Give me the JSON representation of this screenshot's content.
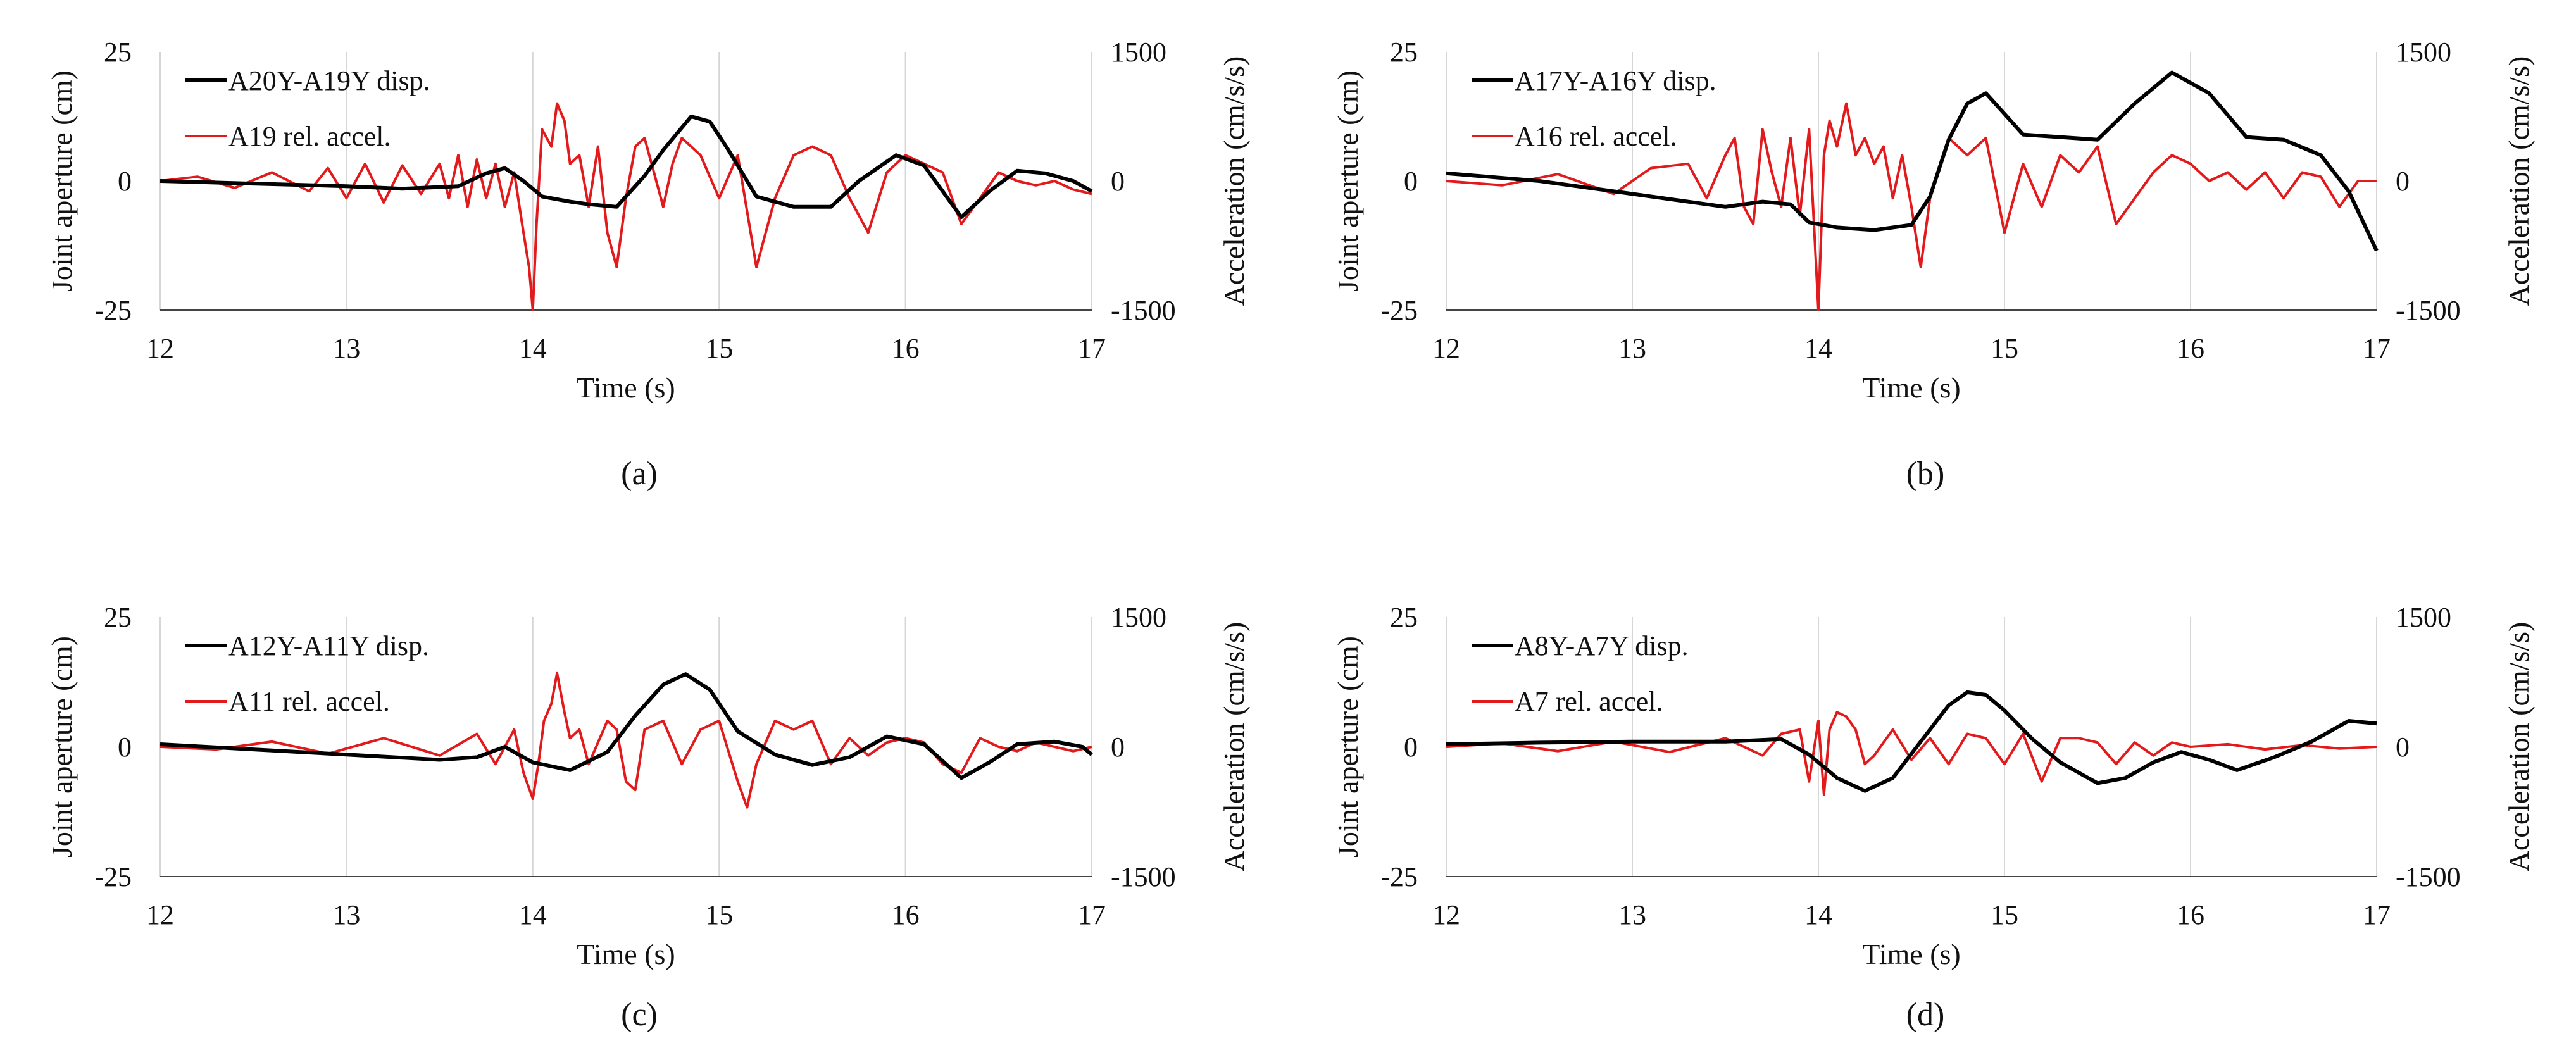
{
  "colors": {
    "disp": "#000000",
    "accel": "#e31a1c",
    "grid": "#d6d6d6"
  },
  "chart_data": [
    {
      "type": "line",
      "panel": "(a)",
      "xlabel": "Time (s)",
      "ylabel": "Joint aperture (cm)",
      "y2label": "Acceleration (cm/s/s)",
      "xlim": [
        12,
        17
      ],
      "xticks": [
        12,
        13,
        14,
        15,
        16,
        17
      ],
      "ylim": [
        -25,
        25
      ],
      "yticks": [
        -25,
        0,
        25
      ],
      "y2lim": [
        -1500,
        1500
      ],
      "y2ticks": [
        -1500,
        0,
        1500
      ],
      "grid": true,
      "legend_position": "top-left",
      "series": [
        {
          "name": "A20Y-A19Y disp.",
          "axis": "left",
          "role": "disp",
          "x": [
            12,
            12.5,
            13,
            13.3,
            13.6,
            13.75,
            13.85,
            13.95,
            14.05,
            14.2,
            14.3,
            14.45,
            14.6,
            14.7,
            14.85,
            14.95,
            15.05,
            15.2,
            15.4,
            15.6,
            15.75,
            15.95,
            16.1,
            16.3,
            16.45,
            16.6,
            16.75,
            16.9,
            17
          ],
          "y": [
            0,
            -0.5,
            -1,
            -1.5,
            -1,
            1.5,
            2.5,
            0,
            -3,
            -4,
            -4.5,
            -5,
            1,
            6,
            12.5,
            11.5,
            6,
            -3,
            -5,
            -5,
            0,
            5,
            3,
            -7,
            -2,
            2,
            1.5,
            0,
            -2
          ]
        },
        {
          "name": "A19 rel. accel.",
          "axis": "right",
          "role": "accel",
          "x": [
            12,
            12.2,
            12.4,
            12.6,
            12.8,
            12.9,
            13,
            13.1,
            13.2,
            13.3,
            13.4,
            13.5,
            13.55,
            13.6,
            13.65,
            13.7,
            13.75,
            13.8,
            13.85,
            13.9,
            13.95,
            13.98,
            14,
            14.02,
            14.05,
            14.1,
            14.13,
            14.17,
            14.2,
            14.25,
            14.3,
            14.35,
            14.4,
            14.45,
            14.5,
            14.55,
            14.6,
            14.65,
            14.7,
            14.75,
            14.8,
            14.9,
            15,
            15.1,
            15.2,
            15.3,
            15.4,
            15.5,
            15.6,
            15.7,
            15.8,
            15.9,
            16,
            16.1,
            16.2,
            16.3,
            16.4,
            16.5,
            16.6,
            16.7,
            16.8,
            16.9,
            17
          ],
          "y": [
            0,
            50,
            -80,
            100,
            -120,
            150,
            -200,
            200,
            -250,
            180,
            -150,
            200,
            -200,
            300,
            -300,
            250,
            -200,
            200,
            -300,
            100,
            -600,
            -1000,
            -1500,
            -500,
            600,
            400,
            900,
            700,
            200,
            300,
            -300,
            400,
            -600,
            -1000,
            -200,
            400,
            500,
            100,
            -300,
            200,
            500,
            300,
            -200,
            300,
            -1000,
            -200,
            300,
            400,
            300,
            -200,
            -600,
            100,
            300,
            200,
            100,
            -500,
            -200,
            100,
            0,
            -50,
            0,
            -100,
            -150
          ]
        }
      ]
    },
    {
      "type": "line",
      "panel": "(b)",
      "xlabel": "Time (s)",
      "ylabel": "Joint aperture (cm)",
      "y2label": "Acceleration (cm/s/s)",
      "xlim": [
        12,
        17
      ],
      "xticks": [
        12,
        13,
        14,
        15,
        16,
        17
      ],
      "ylim": [
        -25,
        25
      ],
      "yticks": [
        -25,
        0,
        25
      ],
      "y2lim": [
        -1500,
        1500
      ],
      "y2ticks": [
        -1500,
        0,
        1500
      ],
      "grid": true,
      "legend_position": "top-left",
      "series": [
        {
          "name": "A17Y-A16Y disp.",
          "axis": "left",
          "role": "disp",
          "x": [
            12,
            12.5,
            13,
            13.5,
            13.7,
            13.85,
            13.95,
            14.1,
            14.3,
            14.5,
            14.6,
            14.7,
            14.8,
            14.9,
            15,
            15.1,
            15.3,
            15.5,
            15.7,
            15.9,
            16.1,
            16.3,
            16.5,
            16.7,
            16.85,
            17
          ],
          "y": [
            1.5,
            0,
            -2.5,
            -5,
            -4,
            -4.5,
            -8,
            -9,
            -9.5,
            -8.5,
            -3,
            8,
            15,
            17,
            13,
            9,
            8.5,
            8,
            15,
            21,
            17,
            8.5,
            8,
            5,
            -2,
            -13.5
          ]
        },
        {
          "name": "A16 rel. accel.",
          "axis": "right",
          "role": "accel",
          "x": [
            12,
            12.3,
            12.6,
            12.9,
            13.1,
            13.3,
            13.4,
            13.5,
            13.55,
            13.6,
            13.65,
            13.7,
            13.75,
            13.8,
            13.85,
            13.9,
            13.95,
            14,
            14.03,
            14.06,
            14.1,
            14.15,
            14.2,
            14.25,
            14.3,
            14.35,
            14.4,
            14.45,
            14.5,
            14.55,
            14.6,
            14.7,
            14.8,
            14.9,
            15,
            15.1,
            15.2,
            15.3,
            15.4,
            15.5,
            15.6,
            15.7,
            15.8,
            15.9,
            16,
            16.1,
            16.2,
            16.3,
            16.4,
            16.5,
            16.6,
            16.7,
            16.8,
            16.9,
            17
          ],
          "y": [
            0,
            -50,
            80,
            -150,
            150,
            200,
            -200,
            300,
            500,
            -300,
            -500,
            600,
            100,
            -300,
            500,
            -400,
            600,
            -1500,
            300,
            700,
            400,
            900,
            300,
            500,
            200,
            400,
            -200,
            300,
            -300,
            -1000,
            -200,
            500,
            300,
            500,
            -600,
            200,
            -300,
            300,
            100,
            400,
            -500,
            -200,
            100,
            300,
            200,
            0,
            100,
            -100,
            100,
            -200,
            100,
            50,
            -300,
            0,
            0
          ]
        }
      ]
    },
    {
      "type": "line",
      "panel": "(c)",
      "xlabel": "Time (s)",
      "ylabel": "Joint aperture (cm)",
      "y2label": "Acceleration (cm/s/s)",
      "xlim": [
        12,
        17
      ],
      "xticks": [
        12,
        13,
        14,
        15,
        16,
        17
      ],
      "ylim": [
        -25,
        25
      ],
      "yticks": [
        -25,
        0,
        25
      ],
      "y2lim": [
        -1500,
        1500
      ],
      "y2ticks": [
        -1500,
        0,
        1500
      ],
      "grid": true,
      "legend_position": "top-left",
      "series": [
        {
          "name": "A12Y-A11Y disp.",
          "axis": "left",
          "role": "disp",
          "x": [
            12,
            12.5,
            13,
            13.5,
            13.7,
            13.85,
            14,
            14.2,
            14.4,
            14.55,
            14.7,
            14.82,
            14.95,
            15.1,
            15.3,
            15.5,
            15.7,
            15.9,
            16.1,
            16.3,
            16.45,
            16.6,
            16.8,
            16.95,
            17
          ],
          "y": [
            0.5,
            -0.5,
            -1.5,
            -2.5,
            -2,
            0,
            -3,
            -4.5,
            -1,
            6,
            12,
            14,
            11,
            3,
            -1.5,
            -3.5,
            -2,
            2,
            0.5,
            -6,
            -3,
            0.5,
            1,
            0,
            -1.5
          ]
        },
        {
          "name": "A11 rel. accel.",
          "axis": "right",
          "role": "accel",
          "x": [
            12,
            12.3,
            12.6,
            12.9,
            13.2,
            13.5,
            13.7,
            13.8,
            13.9,
            13.95,
            14,
            14.03,
            14.06,
            14.1,
            14.13,
            14.17,
            14.2,
            14.25,
            14.3,
            14.4,
            14.45,
            14.5,
            14.55,
            14.6,
            14.7,
            14.8,
            14.9,
            15,
            15.1,
            15.15,
            15.2,
            15.3,
            15.4,
            15.5,
            15.6,
            15.7,
            15.8,
            15.9,
            16,
            16.1,
            16.2,
            16.3,
            16.4,
            16.5,
            16.6,
            16.7,
            16.8,
            16.9,
            17
          ],
          "y": [
            0,
            -30,
            60,
            -80,
            100,
            -100,
            150,
            -200,
            200,
            -300,
            -600,
            -200,
            300,
            500,
            850,
            400,
            100,
            200,
            -200,
            300,
            200,
            -400,
            -500,
            200,
            300,
            -200,
            200,
            300,
            -400,
            -700,
            -200,
            300,
            200,
            300,
            -200,
            100,
            -100,
            50,
            100,
            50,
            -200,
            -300,
            100,
            0,
            -50,
            50,
            0,
            -50,
            0
          ]
        }
      ]
    },
    {
      "type": "line",
      "panel": "(d)",
      "xlabel": "Time (s)",
      "ylabel": "Joint aperture (cm)",
      "y2label": "Acceleration (cm/s/s)",
      "xlim": [
        12,
        17
      ],
      "xticks": [
        12,
        13,
        14,
        15,
        16,
        17
      ],
      "ylim": [
        -25,
        25
      ],
      "yticks": [
        -25,
        0,
        25
      ],
      "y2lim": [
        -1500,
        1500
      ],
      "y2ticks": [
        -1500,
        0,
        1500
      ],
      "grid": true,
      "legend_position": "top-left",
      "series": [
        {
          "name": "A8Y-A7Y disp.",
          "axis": "left",
          "role": "disp",
          "x": [
            12,
            12.5,
            13,
            13.5,
            13.8,
            13.95,
            14.1,
            14.25,
            14.4,
            14.55,
            14.7,
            14.8,
            14.9,
            15,
            15.15,
            15.3,
            15.5,
            15.65,
            15.8,
            15.95,
            16.1,
            16.25,
            16.45,
            16.65,
            16.85,
            17
          ],
          "y": [
            0.5,
            0.8,
            1,
            1,
            1.5,
            -1.5,
            -6,
            -8.5,
            -6,
            1,
            8,
            10.5,
            10,
            7,
            1.5,
            -3,
            -7,
            -6,
            -3,
            -1,
            -2.5,
            -4.5,
            -2,
            1,
            5,
            4.5
          ]
        },
        {
          "name": "A7 rel. accel.",
          "axis": "right",
          "role": "accel",
          "x": [
            12,
            12.3,
            12.6,
            12.9,
            13.2,
            13.5,
            13.7,
            13.8,
            13.9,
            13.95,
            14,
            14.03,
            14.06,
            14.1,
            14.15,
            14.2,
            14.25,
            14.3,
            14.4,
            14.5,
            14.6,
            14.7,
            14.8,
            14.9,
            15,
            15.1,
            15.2,
            15.3,
            15.4,
            15.5,
            15.6,
            15.7,
            15.8,
            15.9,
            16,
            16.2,
            16.4,
            16.6,
            16.8,
            17
          ],
          "y": [
            0,
            40,
            -50,
            60,
            -60,
            100,
            -100,
            150,
            200,
            -400,
            300,
            -550,
            200,
            400,
            350,
            200,
            -200,
            -100,
            200,
            -150,
            100,
            -200,
            150,
            100,
            -200,
            150,
            -400,
            100,
            100,
            50,
            -200,
            50,
            -100,
            50,
            0,
            30,
            -30,
            20,
            -20,
            0
          ]
        }
      ]
    }
  ]
}
